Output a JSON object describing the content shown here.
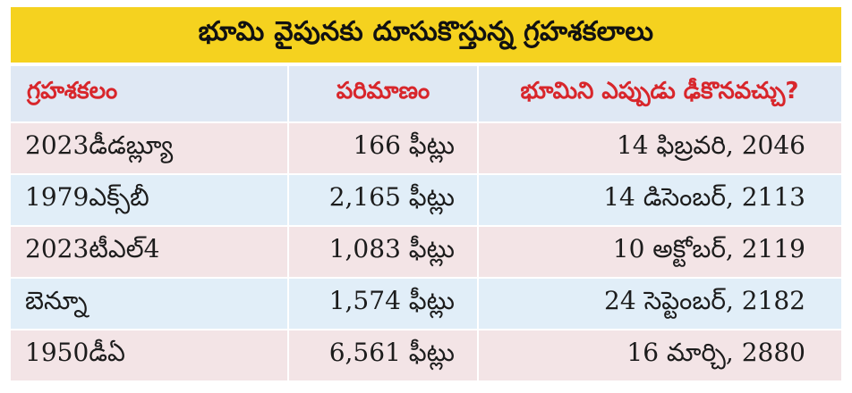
{
  "title": "భూమి వైపునకు దూసుకొస్తున్న గ్రహశకలాలు",
  "columns": [
    "గ్రహశకలం",
    "పరిమాణం",
    "భూమిని ఎప్పుడు ఢీకొనవచ్చు?"
  ],
  "rows": [
    {
      "name": "2023డీడబ్ల్యూ",
      "size": "166 ఫీట్లు",
      "date": "14 ఫిబ్రవరి, 2046"
    },
    {
      "name": "1979ఎక్స్‌బీ",
      "size": "2,165 ఫీట్లు",
      "date": "14 డిసెంబర్, 2113"
    },
    {
      "name": "2023టీఎల్4",
      "size": "1,083 ఫీట్లు",
      "date": "10 అక్టోబర్, 2119"
    },
    {
      "name": "బెన్నూ",
      "size": "1,574 ఫీట్లు",
      "date": "24 సెప్టెంబర్, 2182"
    },
    {
      "name": "1950డీఏ",
      "size": "6,561 ఫీట్లు",
      "date": "16 మార్చి, 2880"
    }
  ],
  "colors": {
    "title_bg": "#f5d21f",
    "header_bg": "#dfe8f4",
    "header_text": "#d8262b",
    "row_pink": "#f3e4e6",
    "row_blue": "#e1eef8"
  }
}
